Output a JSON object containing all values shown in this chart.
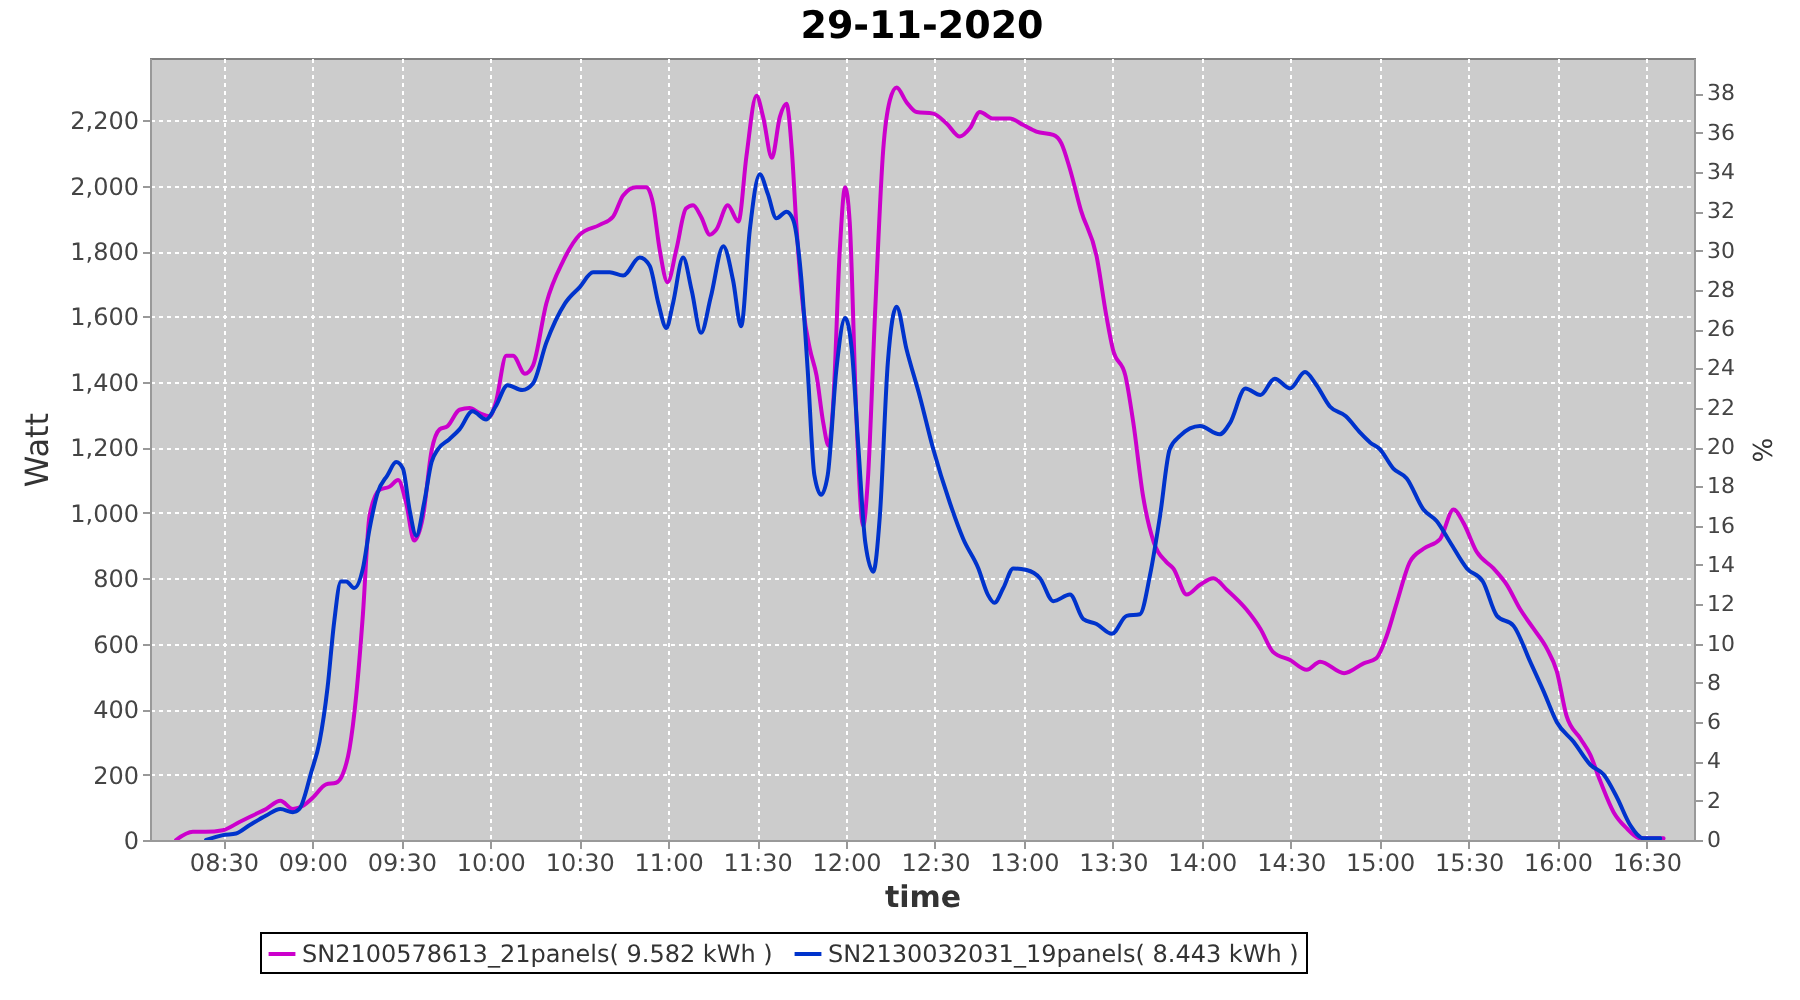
{
  "chart_data": {
    "type": "line",
    "title": "29-11-2020",
    "xlabel": "time",
    "ylabel": "Watt",
    "y2label": "%",
    "xlim": [
      8.087,
      16.767
    ],
    "xticks": [
      {
        "value": 8.5,
        "label": "08:30"
      },
      {
        "value": 9,
        "label": "09:00"
      },
      {
        "value": 9.5,
        "label": "09:30"
      },
      {
        "value": 10,
        "label": "10:00"
      },
      {
        "value": 10.5,
        "label": "10:30"
      },
      {
        "value": 11,
        "label": "11:00"
      },
      {
        "value": 11.5,
        "label": "11:30"
      },
      {
        "value": 12,
        "label": "12:00"
      },
      {
        "value": 12.5,
        "label": "12:30"
      },
      {
        "value": 13,
        "label": "13:00"
      },
      {
        "value": 13.5,
        "label": "13:30"
      },
      {
        "value": 14,
        "label": "14:00"
      },
      {
        "value": 14.5,
        "label": "14:30"
      },
      {
        "value": 15,
        "label": "15:00"
      },
      {
        "value": 15.5,
        "label": "15:30"
      },
      {
        "value": 16,
        "label": "16:00"
      },
      {
        "value": 16.5,
        "label": "16:30"
      }
    ],
    "ylim": [
      0,
      2390
    ],
    "yticks": [
      0,
      200,
      400,
      600,
      800,
      {
        "value": 1000,
        "label": "1,000"
      },
      {
        "value": 1200,
        "label": "1,200"
      },
      {
        "value": 1400,
        "label": "1,400"
      },
      {
        "value": 1600,
        "label": "1,600"
      },
      {
        "value": 1800,
        "label": "1,800"
      },
      {
        "value": 2000,
        "label": "2,000"
      },
      {
        "value": 2200,
        "label": "2,200"
      }
    ],
    "y2lim": [
      0,
      39.8
    ],
    "y2ticks": [
      0,
      2,
      4,
      6,
      8,
      10,
      12,
      14,
      16,
      18,
      20,
      22,
      24,
      26,
      28,
      30,
      32,
      34,
      36,
      38
    ],
    "grid": true,
    "legend": "bottom",
    "line_style": "solid",
    "series": [
      {
        "name": "SN2100578613_21panels( 9.582 kWh )",
        "color": "#cc00cc",
        "x": [
          8.233,
          8.328,
          8.4,
          8.497,
          8.59,
          8.665,
          8.74,
          8.82,
          8.89,
          8.947,
          9.003,
          9.077,
          9.133,
          9.17,
          9.209,
          9.246,
          9.284,
          9.321,
          9.377,
          9.434,
          9.482,
          9.527,
          9.572,
          9.622,
          9.67,
          9.715,
          9.76,
          9.827,
          9.884,
          9.94,
          9.996,
          10.03,
          10.09,
          10.128,
          10.195,
          10.24,
          10.315,
          10.41,
          10.503,
          10.615,
          10.69,
          10.747,
          10.82,
          10.877,
          10.915,
          10.952,
          10.997,
          11.046,
          11.1,
          11.14,
          11.185,
          11.234,
          11.27,
          11.335,
          11.395,
          11.44,
          11.496,
          11.534,
          11.583,
          11.628,
          11.665,
          11.695,
          11.72,
          11.76,
          11.797,
          11.834,
          11.872,
          11.902,
          11.928,
          11.965,
          11.995,
          12.021,
          12.058,
          12.096,
          12.122,
          12.164,
          12.209,
          12.246,
          12.284,
          12.34,
          12.396,
          12.49,
          12.565,
          12.64,
          12.696,
          12.752,
          12.828,
          12.921,
          12.997,
          13.07,
          13.165,
          13.21,
          13.259,
          13.32,
          13.408,
          13.464,
          13.5,
          13.57,
          13.615,
          13.67,
          13.73,
          13.8,
          13.84,
          13.915,
          13.99,
          14.065,
          14.14,
          14.25,
          14.33,
          14.4,
          14.496,
          14.59,
          14.665,
          14.8,
          14.91,
          14.98,
          15.04,
          15.096,
          15.17,
          15.246,
          15.34,
          15.415,
          15.47,
          15.546,
          15.64,
          15.715,
          15.79,
          15.866,
          15.94,
          15.996,
          16.05,
          16.128,
          16.184,
          16.24,
          16.315,
          16.39,
          16.465,
          16.54,
          16.596
        ],
        "values": [
          0,
          25,
          25,
          30,
          55,
          75,
          95,
          120,
          95,
          105,
          130,
          170,
          175,
          200,
          280,
          440,
          690,
          990,
          1070,
          1080,
          1100,
          1030,
          915,
          990,
          1190,
          1255,
          1265,
          1315,
          1320,
          1305,
          1295,
          1335,
          1480,
          1480,
          1425,
          1450,
          1640,
          1770,
          1850,
          1880,
          1905,
          1970,
          1995,
          1995,
          1945,
          1805,
          1705,
          1805,
          1930,
          1940,
          1905,
          1850,
          1865,
          1940,
          1890,
          2090,
          2275,
          2210,
          2085,
          2210,
          2250,
          2110,
          1885,
          1620,
          1500,
          1420,
          1275,
          1205,
          1335,
          1805,
          1995,
          1885,
          1295,
          960,
          1095,
          1620,
          2110,
          2260,
          2300,
          2255,
          2225,
          2220,
          2190,
          2150,
          2175,
          2225,
          2205,
          2205,
          2185,
          2165,
          2155,
          2130,
          2050,
          1925,
          1785,
          1600,
          1500,
          1420,
          1275,
          1050,
          910,
          850,
          830,
          750,
          780,
          800,
          765,
          705,
          645,
          575,
          550,
          520,
          545,
          510,
          540,
          555,
          625,
          725,
          850,
          890,
          920,
          1010,
          970,
          880,
          830,
          780,
          705,
          645,
          585,
          515,
          380,
          310,
          260,
          180,
          85,
          35,
          5,
          5,
          5
        ]
      },
      {
        "name": "SN2130032031_19panels( 8.443 kWh )",
        "color": "#0033cc",
        "x": [
          8.402,
          8.497,
          8.571,
          8.646,
          8.74,
          8.82,
          8.89,
          8.927,
          8.995,
          9.04,
          9.085,
          9.122,
          9.16,
          9.19,
          9.235,
          9.284,
          9.321,
          9.366,
          9.422,
          9.471,
          9.509,
          9.546,
          9.584,
          9.628,
          9.67,
          9.707,
          9.77,
          9.827,
          9.9,
          9.977,
          10.03,
          10.097,
          10.18,
          10.24,
          10.315,
          10.42,
          10.503,
          10.578,
          10.671,
          10.747,
          10.84,
          10.896,
          10.945,
          10.99,
          11.027,
          11.084,
          11.132,
          11.185,
          11.24,
          11.31,
          11.365,
          11.41,
          11.459,
          11.515,
          11.56,
          11.608,
          11.665,
          11.703,
          11.747,
          11.784,
          11.822,
          11.86,
          11.897,
          11.946,
          11.995,
          12.032,
          12.07,
          12.108,
          12.153,
          12.19,
          12.235,
          12.284,
          12.34,
          12.415,
          12.49,
          12.584,
          12.659,
          12.744,
          12.797,
          12.834,
          12.884,
          12.94,
          13.015,
          13.09,
          13.165,
          13.259,
          13.334,
          13.408,
          13.495,
          13.577,
          13.652,
          13.709,
          13.765,
          13.82,
          13.877,
          13.99,
          14.1,
          14.159,
          14.245,
          14.33,
          14.41,
          14.496,
          14.58,
          14.645,
          14.72,
          14.81,
          14.89,
          14.946,
          15.0,
          15.077,
          15.152,
          15.246,
          15.32,
          15.396,
          15.49,
          15.58,
          15.659,
          15.752,
          15.846,
          15.921,
          15.996,
          16.09,
          16.184,
          16.259,
          16.334,
          16.409,
          16.484,
          16.577
        ],
        "values": [
          0,
          15,
          20,
          45,
          75,
          95,
          85,
          95,
          210,
          300,
          465,
          665,
          790,
          790,
          770,
          830,
          950,
          1060,
          1115,
          1155,
          1135,
          1010,
          930,
          1030,
          1155,
          1195,
          1225,
          1255,
          1310,
          1285,
          1325,
          1390,
          1375,
          1395,
          1520,
          1640,
          1690,
          1735,
          1735,
          1725,
          1780,
          1755,
          1640,
          1565,
          1640,
          1780,
          1680,
          1550,
          1660,
          1815,
          1710,
          1570,
          1865,
          2035,
          1975,
          1900,
          1920,
          1895,
          1725,
          1440,
          1115,
          1055,
          1115,
          1440,
          1595,
          1500,
          1195,
          910,
          820,
          990,
          1460,
          1630,
          1500,
          1355,
          1195,
          1030,
          920,
          830,
          750,
          725,
          770,
          830,
          825,
          800,
          730,
          750,
          675,
          660,
          630,
          685,
          690,
          810,
          990,
          1195,
          1235,
          1265,
          1240,
          1275,
          1380,
          1360,
          1410,
          1380,
          1430,
          1390,
          1325,
          1295,
          1245,
          1215,
          1195,
          1135,
          1105,
          1010,
          975,
          910,
          830,
          790,
          685,
          655,
          545,
          455,
          360,
          300,
          230,
          200,
          130,
          45,
          5,
          5
        ]
      }
    ]
  }
}
